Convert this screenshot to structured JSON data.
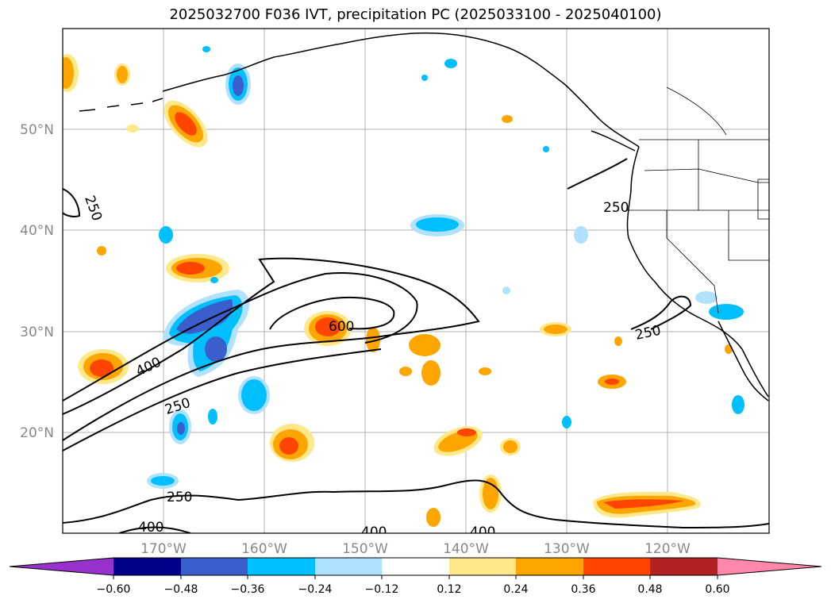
{
  "title": "2025032700 F036 IVT, precipitation PC (2025033100 - 2025040100)",
  "map": {
    "lon_range": [
      -180,
      -110
    ],
    "lat_range": [
      10,
      60
    ],
    "lon_tick_values": [
      -170,
      -160,
      -150,
      -140,
      -130,
      -120
    ],
    "lon_ticks": [
      "170°W",
      "160°W",
      "150°W",
      "140°W",
      "130°W",
      "120°W"
    ],
    "lat_tick_values": [
      20,
      30,
      40,
      50
    ],
    "lat_ticks": [
      "20°N",
      "30°N",
      "40°N",
      "50°N"
    ],
    "grid": true,
    "contour_labels": [
      "250",
      "250",
      "250",
      "400",
      "250",
      "600",
      "250",
      "400",
      "400",
      "400"
    ]
  },
  "colorbar": {
    "ticks": [
      "−0.60",
      "−0.48",
      "−0.36",
      "−0.24",
      "−0.12",
      "0.12",
      "0.24",
      "0.36",
      "0.48",
      "0.60"
    ],
    "colors": [
      "#9932cc",
      "#00008b",
      "#3a5fcd",
      "#00bfff",
      "#b0e2ff",
      "#ffffff",
      "#ffe88a",
      "#ffa500",
      "#ff4500",
      "#b22222",
      "#ff88aa"
    ]
  },
  "colors": {
    "neg_strong": "#3a5fcd",
    "neg_mid": "#00bfff",
    "neg_light": "#b0e2ff",
    "pos_light": "#ffe88a",
    "pos_mid": "#ffa500",
    "pos_strong": "#ff4500",
    "pos_deep": "#b22222"
  }
}
